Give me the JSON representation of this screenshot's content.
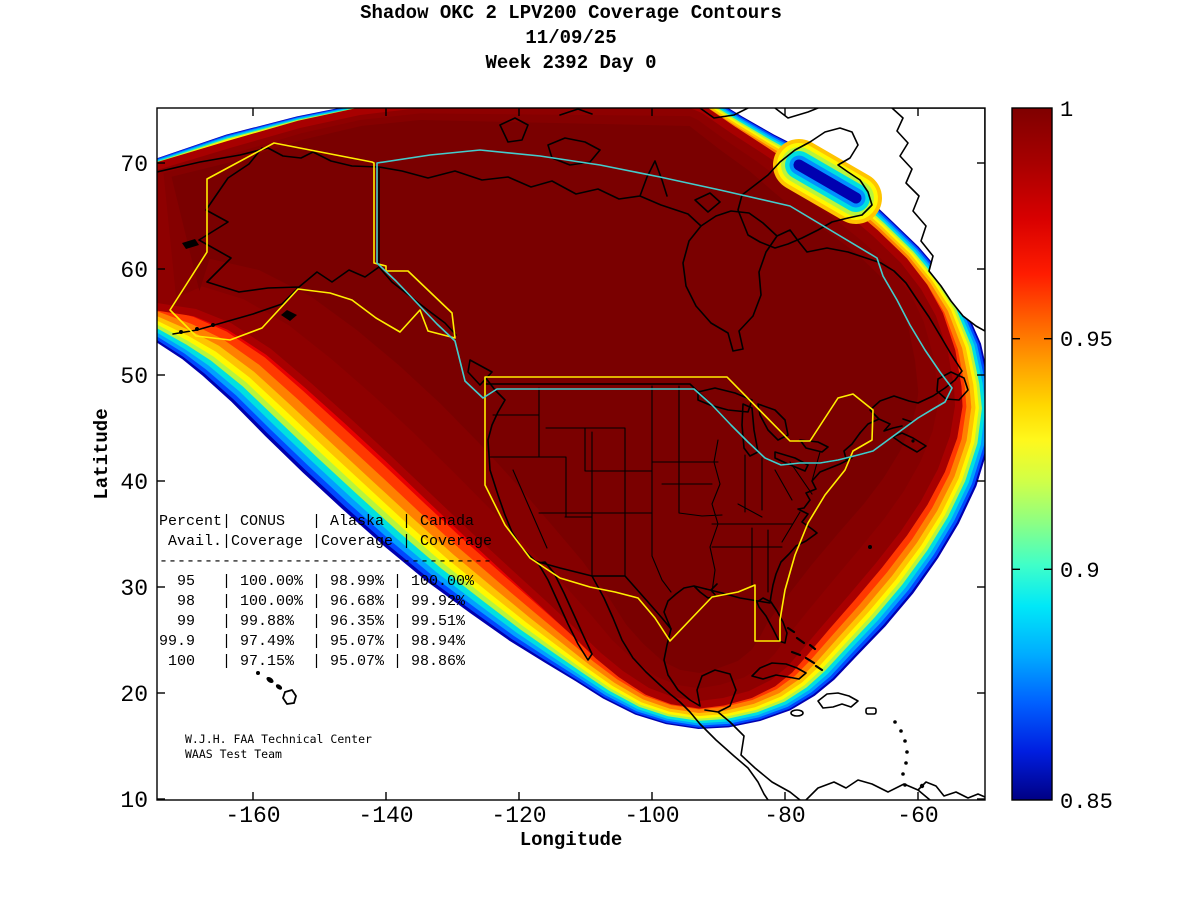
{
  "page_title": "Shadow OKC 2 LPV200 Coverage Contours",
  "title": {
    "line1": "Shadow OKC 2 LPV200 Coverage Contours",
    "line2": "11/09/25",
    "line3": "Week 2392 Day 0"
  },
  "axes": {
    "x_label": "Longitude",
    "y_label": "Latitude",
    "x_tick_labels": [
      "-160",
      "-140",
      "-120",
      "-100",
      "-80",
      "-60"
    ],
    "y_tick_labels": [
      "70",
      "60",
      "50",
      "40",
      "30",
      "20",
      "10"
    ]
  },
  "colorbar": {
    "tick_labels": [
      "1",
      "0.95",
      "0.9",
      "0.85"
    ],
    "gradient": [
      [
        "0%",
        "#7f0000"
      ],
      [
        "8%",
        "#a80000"
      ],
      [
        "16%",
        "#d80000"
      ],
      [
        "24%",
        "#ff1c00"
      ],
      [
        "31%",
        "#ff6400"
      ],
      [
        "37%",
        "#ffa000"
      ],
      [
        "43%",
        "#ffd800"
      ],
      [
        "48%",
        "#fff81c"
      ],
      [
        "54%",
        "#d0ff48"
      ],
      [
        "60%",
        "#8cff84"
      ],
      [
        "66%",
        "#40ffc8"
      ],
      [
        "72%",
        "#00e8f8"
      ],
      [
        "79%",
        "#00acff"
      ],
      [
        "86%",
        "#0060ff"
      ],
      [
        "93%",
        "#001ee0"
      ],
      [
        "100%",
        "#000084"
      ]
    ]
  },
  "stats_table": {
    "columns": [
      "Percent Avail.",
      "CONUS Coverage",
      "Alaska Coverage",
      "Canada Coverage"
    ],
    "rows": [
      [
        "95",
        "100.00%",
        "98.99%",
        "100.00%"
      ],
      [
        "98",
        "100.00%",
        "96.68%",
        "99.92%"
      ],
      [
        "99",
        "99.88%",
        "96.35%",
        "99.51%"
      ],
      [
        "99.9",
        "97.49%",
        "95.07%",
        "98.94%"
      ],
      [
        "100",
        "97.15%",
        "95.07%",
        "98.86%"
      ]
    ],
    "lines": [
      "Percent| CONUS   | Alaska  | Canada",
      " Avail.|Coverage |Coverage | Coverage",
      "-------------------------------------",
      "  95   | 100.00% | 98.99% | 100.00%",
      "  98   | 100.00% | 96.68% | 99.92%",
      "  99   | 99.88%  | 96.35% | 99.51%",
      "99.9   | 97.49%  | 95.07% | 98.94%",
      " 100   | 97.15%  | 95.07% | 98.86%"
    ]
  },
  "credit": {
    "line1": "W.J.H. FAA Technical Center",
    "line2": "WAAS Test Team"
  },
  "map_colors": {
    "core": "#8e0000",
    "core_mid": "#850000",
    "core_dark": "#7a0000",
    "edge_ring": "#a80000",
    "bands_inner_to_outer": [
      "#e80000",
      "#ff3800",
      "#ff8000",
      "#ffc400",
      "#fff800",
      "#b8f53c",
      "#00e0e0",
      "#00a0ff",
      "#0048ff",
      "#0000b0"
    ],
    "coastline": "#000000",
    "conus_alaska_boundary": "#ffee00",
    "canada_boundary": "#44cccc",
    "ocean": "#ffffff"
  },
  "chart_data": {
    "type": "contour",
    "title": "Shadow OKC 2 LPV200 Coverage Contours",
    "date": "11/09/25",
    "week_day": "Week 2392 Day 0",
    "xlabel": "Longitude",
    "ylabel": "Latitude",
    "xlim": [
      -175,
      -50
    ],
    "ylim": [
      10,
      75
    ],
    "xticks": [
      -160,
      -140,
      -120,
      -100,
      -80,
      -60
    ],
    "yticks": [
      70,
      60,
      50,
      40,
      30,
      20,
      10
    ],
    "grid": false,
    "colorbar": {
      "min": 0.85,
      "max": 1.0,
      "ticks": [
        1,
        0.95,
        0.9,
        0.85
      ],
      "colormap": "jet"
    },
    "series_note": "LPV200 coverage probability: dark-red core ~1.0 over North America, rainbow fringe decreasing to 0.85 over surrounding oceans, low-coverage notch in Davis Strait",
    "coverage_table": {
      "percent_avail": [
        95,
        98,
        99,
        99.9,
        100
      ],
      "conus_coverage_pct": [
        100.0,
        100.0,
        99.88,
        97.49,
        97.15
      ],
      "alaska_coverage_pct": [
        98.99,
        96.68,
        96.35,
        95.07,
        95.07
      ],
      "canada_coverage_pct": [
        100.0,
        99.92,
        99.51,
        98.94,
        98.86
      ]
    }
  }
}
